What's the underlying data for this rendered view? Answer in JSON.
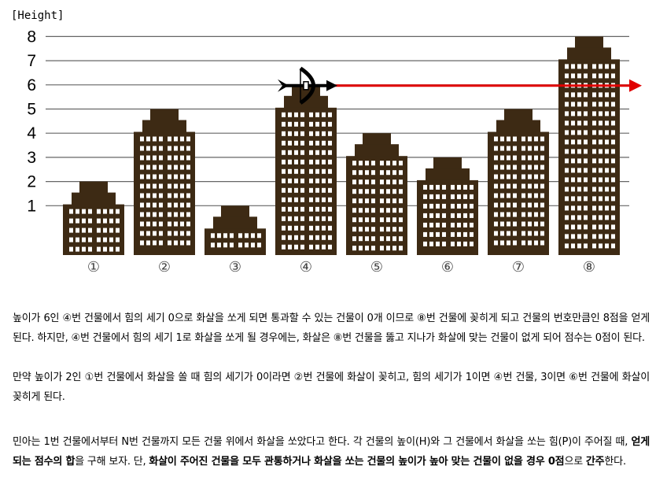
{
  "figure": {
    "y_label": "[Height]",
    "y_ticks": [
      "1",
      "2",
      "3",
      "4",
      "5",
      "6",
      "7",
      "8"
    ],
    "buildings": [
      {
        "label": "①",
        "height": 2
      },
      {
        "label": "②",
        "height": 5
      },
      {
        "label": "③",
        "height": 1
      },
      {
        "label": "④",
        "height": 6
      },
      {
        "label": "⑤",
        "height": 4
      },
      {
        "label": "⑥",
        "height": 3
      },
      {
        "label": "⑦",
        "height": 5
      },
      {
        "label": "⑧",
        "height": 8
      }
    ],
    "archer_on_building": 4,
    "arrow_height": 6,
    "colors": {
      "building": "#3d2a14",
      "window": "#ffffff",
      "arrow": "#e00000",
      "grid": "#666666"
    }
  },
  "text": {
    "p1": "높이가 6인 ④번 건물에서 힘의 세기 0으로 화살을 쏘게 되면 통과할 수 있는 건물이 0개 이므로 ⑧번 건물에 꽂히게 되고 건물의 번호만큼인 8점을 얻게 된다. 하지만, ④번 건물에서 힘의 세기 1로 화살을 쏘게 될 경우에는, 화살은 ⑧번 건물을 뚫고 지나가 화살에 맞는 건물이 없게 되어 점수는 0점이 된다.",
    "p2": "만약 높이가 2인 ①번 건물에서 화살을 쏠 때 힘의 세기가 0이라면 ②번 건물에 화살이 꽂히고, 힘의 세기가 1이면 ④번 건물, 3이면 ⑥번 건물에 화살이 꽂히게 된다.",
    "p3_a": "민아는 1번 건물에서부터 N번 건물까지 모든 건물 위에서 화살을 쏘았다고 한다. 각 건물의 높이(H)와 그 건물에서 화살을 쏘는 힘(P)이 주어질 때, ",
    "p3_b": "얻게 되는 점수의 합",
    "p3_c": "을 구해 보자. 단, ",
    "p3_d": "화살이 주어진 건물을 모두 관통하거나 화살을 쏘는 건물의 높이가 높아 맞는 건물이 없을 경우 0점",
    "p3_e": "으로 ",
    "p3_f": "간주",
    "p3_g": "한다."
  }
}
